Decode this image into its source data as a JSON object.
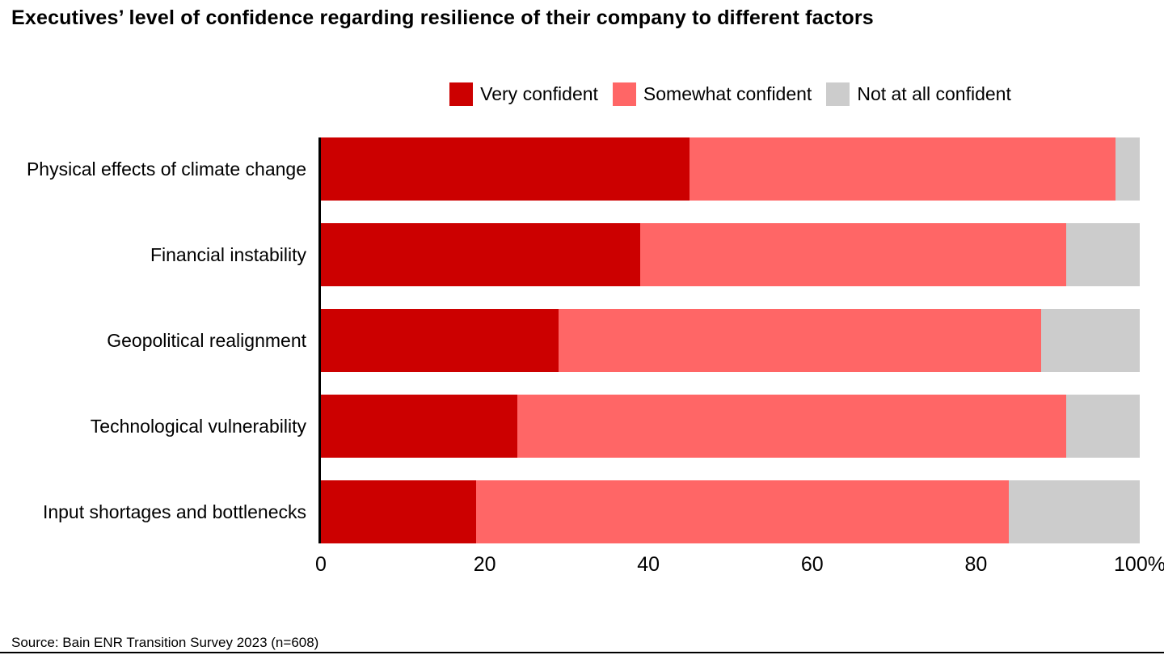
{
  "title": "Executives’ level of confidence regarding resilience of their company to different factors",
  "source": "Source: Bain ENR Transition Survey 2023 (n=608)",
  "colors": {
    "very_confident": "#cc0000",
    "somewhat_confident": "#ff6666",
    "not_at_all_confident": "#cccccc",
    "axis": "#000000",
    "background": "#ffffff"
  },
  "chart_data": {
    "type": "bar",
    "orientation": "horizontal",
    "stacked": true,
    "title": "Executives’ level of confidence regarding resilience of their company to different factors",
    "categories": [
      "Physical effects of climate change",
      "Financial instability",
      "Geopolitical realignment",
      "Technological vulnerability",
      "Input shortages and bottlenecks"
    ],
    "series": [
      {
        "name": "Very confident",
        "color": "#cc0000",
        "values": [
          45,
          39,
          29,
          24,
          19
        ]
      },
      {
        "name": "Somewhat confident",
        "color": "#ff6666",
        "values": [
          52,
          52,
          59,
          67,
          65
        ]
      },
      {
        "name": "Not at all confident",
        "color": "#cccccc",
        "values": [
          3,
          9,
          12,
          9,
          16
        ]
      }
    ],
    "xlabel": "",
    "ylabel": "",
    "xlim": [
      0,
      100
    ],
    "x_ticks": [
      "0",
      "20",
      "40",
      "60",
      "80",
      "100%"
    ],
    "legend_position": "top-center",
    "grid": false
  }
}
